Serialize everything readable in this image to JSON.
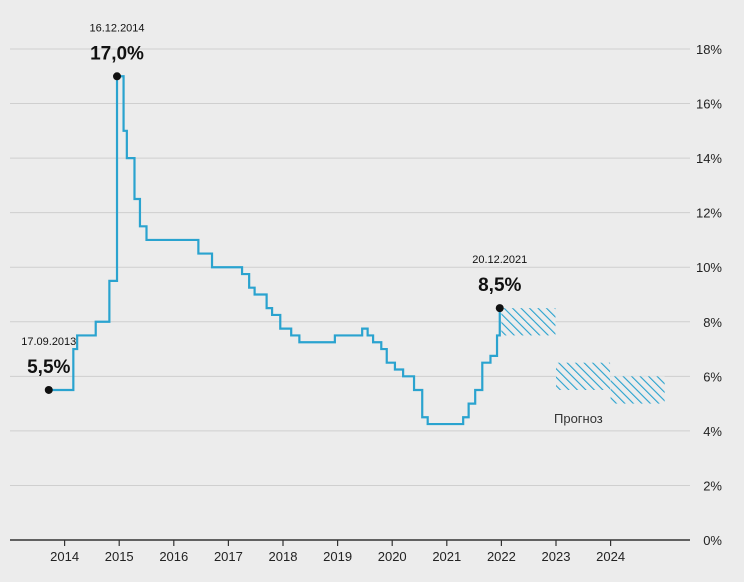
{
  "chart_data": {
    "type": "line",
    "title": "",
    "xlabel": "",
    "ylabel": "",
    "y_unit": "%",
    "grid": "horizontal",
    "y_axis_side": "right",
    "ylim": [
      0,
      18
    ],
    "xlim": [
      2013.0,
      2025.3
    ],
    "x_ticks": [
      "2014",
      "2015",
      "2016",
      "2017",
      "2018",
      "2019",
      "2020",
      "2021",
      "2022",
      "2023",
      "2024"
    ],
    "y_ticks": [
      "0%",
      "2%",
      "4%",
      "6%",
      "8%",
      "10%",
      "12%",
      "14%",
      "16%",
      "18%"
    ],
    "colors": {
      "line": "#2aa3cf",
      "forecast": "#2aa3cf",
      "grid": "#cfcfcf"
    },
    "series": [
      {
        "x": [
          2013.71,
          2014.16,
          2014.23,
          2014.32,
          2014.57,
          2014.82,
          2014.96,
          2015.08,
          2015.14,
          2015.28,
          2015.38,
          2015.5,
          2015.65,
          2016.45,
          2016.7,
          2016.95,
          2017.25,
          2017.38,
          2017.48,
          2017.7,
          2017.8,
          2017.95,
          2018.15,
          2018.3,
          2018.7,
          2018.95,
          2019.45,
          2019.55,
          2019.65,
          2019.8,
          2019.9,
          2020.05,
          2020.2,
          2020.4,
          2020.55,
          2020.65,
          2021.2,
          2021.3,
          2021.4,
          2021.52,
          2021.65,
          2021.8,
          2021.92,
          2021.97
        ],
        "y": [
          5.5,
          7.0,
          7.5,
          7.5,
          8.0,
          9.5,
          17.0,
          15.0,
          14.0,
          12.5,
          11.5,
          11.0,
          11.0,
          10.5,
          10.0,
          10.0,
          9.75,
          9.25,
          9.0,
          8.5,
          8.25,
          7.75,
          7.5,
          7.25,
          7.25,
          7.5,
          7.75,
          7.5,
          7.25,
          7.0,
          6.5,
          6.25,
          6.0,
          5.5,
          4.5,
          4.25,
          4.25,
          4.5,
          5.0,
          5.5,
          6.5,
          6.75,
          7.5,
          8.5
        ]
      }
    ],
    "forecast": {
      "label": "Прогноз",
      "bands": [
        {
          "x": [
            2022.0,
            2022.99
          ],
          "y": [
            7.5,
            8.5
          ]
        },
        {
          "x": [
            2023.0,
            2023.99
          ],
          "y": [
            5.5,
            6.5
          ]
        },
        {
          "x": [
            2024.0,
            2024.99
          ],
          "y": [
            5.0,
            6.0
          ]
        }
      ]
    },
    "annotations": [
      {
        "date": "17.09.2013",
        "value": "5,5%",
        "x": 2013.71,
        "y": 5.5
      },
      {
        "date": "16.12.2014",
        "value": "17,0%",
        "x": 2014.96,
        "y": 17.0
      },
      {
        "date": "20.12.2021",
        "value": "8,5%",
        "x": 2021.97,
        "y": 8.5
      }
    ]
  }
}
